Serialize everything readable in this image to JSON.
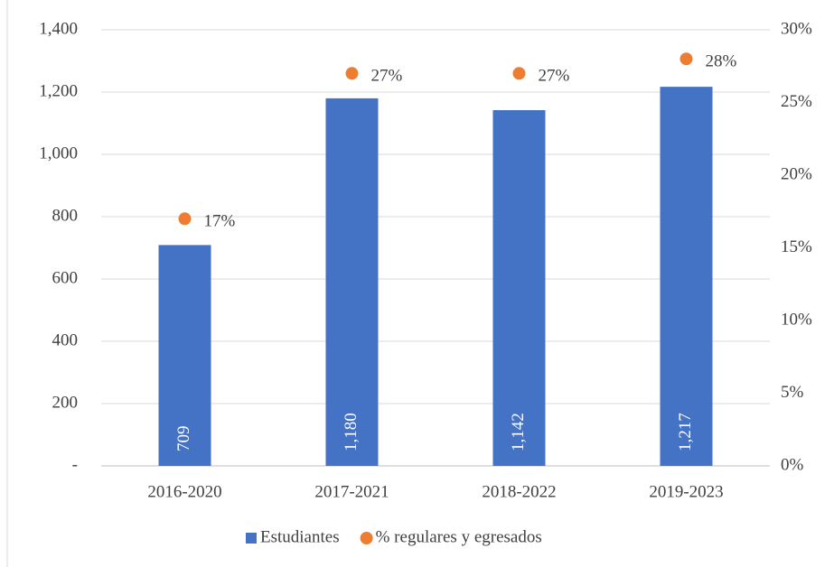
{
  "chart_data": {
    "type": "bar",
    "categories": [
      "2016-2020",
      "2017-2021",
      "2018-2022",
      "2019-2023"
    ],
    "series": [
      {
        "name": "Estudiantes",
        "type": "bar",
        "color": "#4472c4",
        "values": [
          709,
          1180,
          1142,
          1217
        ],
        "value_labels": [
          "709",
          "1,180",
          "1,142",
          "1,217"
        ]
      },
      {
        "name": "% regulares y egresados",
        "type": "scatter",
        "axis": "y2",
        "color": "#ed7d31",
        "values": [
          17,
          27,
          27,
          28
        ],
        "value_labels": [
          "17%",
          "27%",
          "27%",
          "28%"
        ]
      }
    ],
    "ylim": [
      0,
      1400
    ],
    "yticks": [
      {
        "value": 0,
        "label": "-"
      },
      200,
      400,
      600,
      800,
      {
        "value": 1000,
        "label": "1,000"
      },
      {
        "value": 1200,
        "label": "1,200"
      },
      {
        "value": 1400,
        "label": "1,400"
      }
    ],
    "y2lim": [
      0,
      30
    ],
    "y2ticks": [
      {
        "value": 0,
        "label": "0%"
      },
      {
        "value": 5,
        "label": "5%"
      },
      {
        "value": 10,
        "label": "10%"
      },
      {
        "value": 15,
        "label": "15%"
      },
      {
        "value": 20,
        "label": "20%"
      },
      {
        "value": 25,
        "label": "25%"
      },
      {
        "value": 30,
        "label": "30%"
      }
    ],
    "grid": true,
    "legend": "bottom"
  }
}
